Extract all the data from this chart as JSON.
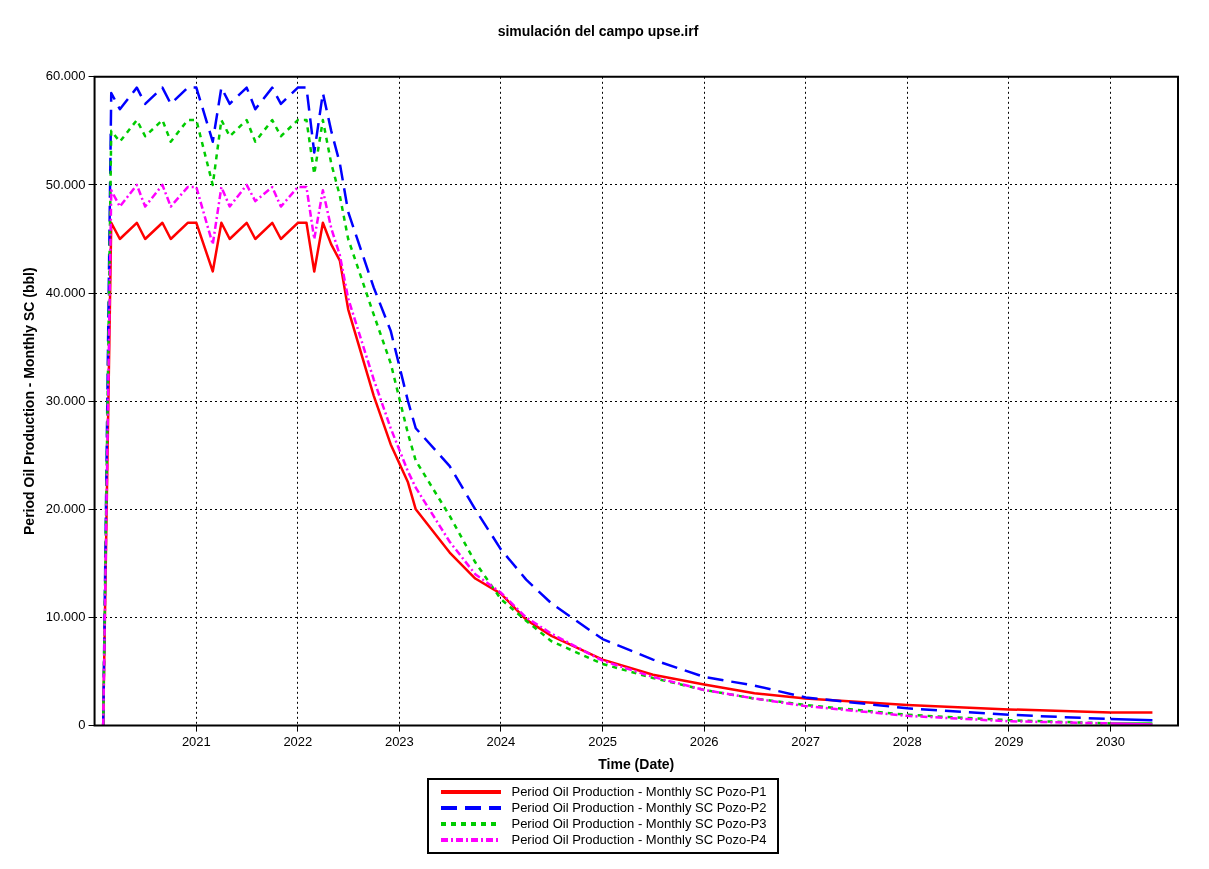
{
  "chart_data": {
    "type": "line",
    "title": "simulación del campo upse.irf",
    "xlabel": "Time (Date)",
    "ylabel": "Period Oil Production - Monthly SC (bbl)",
    "x": [
      "2020-02",
      "2020-03",
      "2020-04",
      "2020-06",
      "2020-07",
      "2020-09",
      "2020-10",
      "2020-12",
      "2021-01",
      "2021-03",
      "2021-04",
      "2021-05",
      "2021-07",
      "2021-08",
      "2021-10",
      "2021-11",
      "2022-01",
      "2022-02",
      "2022-03",
      "2022-04",
      "2022-05",
      "2022-06",
      "2022-07",
      "2022-10",
      "2022-12",
      "2023-02",
      "2023-03",
      "2023-07",
      "2023-10",
      "2024-01",
      "2024-04",
      "2024-07",
      "2025-01",
      "2025-07",
      "2026-01",
      "2026-07",
      "2027-01",
      "2028-01",
      "2029-01",
      "2030-01",
      "2030-06"
    ],
    "series": [
      {
        "name": "Period Oil Production - Monthly SC Pozo-P1",
        "color": "#ff0000",
        "line_style": "solid",
        "values": [
          0,
          46500,
          45000,
          46500,
          45000,
          46500,
          45000,
          46500,
          46500,
          42000,
          46500,
          45000,
          46500,
          45000,
          46500,
          45000,
          46500,
          46500,
          42000,
          46500,
          44500,
          43000,
          38500,
          30500,
          26000,
          22500,
          20000,
          16000,
          13600,
          12200,
          9800,
          8300,
          6100,
          4700,
          3800,
          3000,
          2500,
          1900,
          1500,
          1200,
          1200
        ]
      },
      {
        "name": "Period Oil Production - Monthly SC Pozo-P2",
        "color": "#0000ff",
        "line_style": "dashed",
        "values": [
          0,
          58500,
          57000,
          59000,
          57500,
          59000,
          57500,
          59000,
          59000,
          54000,
          59000,
          57500,
          59000,
          57000,
          59000,
          57500,
          59000,
          59000,
          53000,
          58500,
          55000,
          52000,
          47500,
          40500,
          36500,
          30000,
          27500,
          24000,
          20000,
          16300,
          13500,
          11300,
          8000,
          6100,
          4500,
          3700,
          2600,
          1600,
          1000,
          600,
          500
        ]
      },
      {
        "name": "Period Oil Production - Monthly SC Pozo-P3",
        "color": "#00cc00",
        "line_style": "dotted",
        "values": [
          0,
          55000,
          54000,
          56000,
          54500,
          56000,
          54000,
          56000,
          56000,
          50000,
          56000,
          54500,
          56000,
          54000,
          56000,
          54500,
          56000,
          56000,
          51000,
          56000,
          52000,
          49000,
          45000,
          38000,
          33500,
          27000,
          24500,
          19400,
          15100,
          11700,
          9700,
          7800,
          5700,
          4400,
          3300,
          2500,
          1900,
          1000,
          500,
          200,
          200
        ]
      },
      {
        "name": "Period Oil Production - Monthly SC Pozo-P4",
        "color": "#ff00ff",
        "line_style": "dashdot",
        "values": [
          0,
          49500,
          48000,
          50000,
          48000,
          50000,
          48000,
          49800,
          49800,
          44500,
          49800,
          48000,
          50000,
          48500,
          49800,
          48000,
          49800,
          49800,
          45000,
          49500,
          46000,
          43500,
          39500,
          32000,
          27500,
          23500,
          22000,
          17000,
          14000,
          12300,
          10000,
          8500,
          6000,
          4500,
          3300,
          2500,
          1800,
          900,
          400,
          200,
          100
        ]
      }
    ],
    "xlim": [
      "2020-01",
      "2030-09"
    ],
    "xticks": [
      "2021",
      "2022",
      "2023",
      "2024",
      "2025",
      "2026",
      "2027",
      "2028",
      "2029",
      "2030"
    ],
    "ylim": [
      0,
      60000
    ],
    "yticks": [
      0,
      {
        "value": 10000,
        "label": "10.000"
      },
      {
        "value": 20000,
        "label": "20.000"
      },
      {
        "value": 30000,
        "label": "30.000"
      },
      {
        "value": 40000,
        "label": "40.000"
      },
      {
        "value": 50000,
        "label": "50.000"
      },
      {
        "value": 60000,
        "label": "60.000"
      }
    ],
    "grid": true,
    "legend": "bottom",
    "marker": "none"
  }
}
